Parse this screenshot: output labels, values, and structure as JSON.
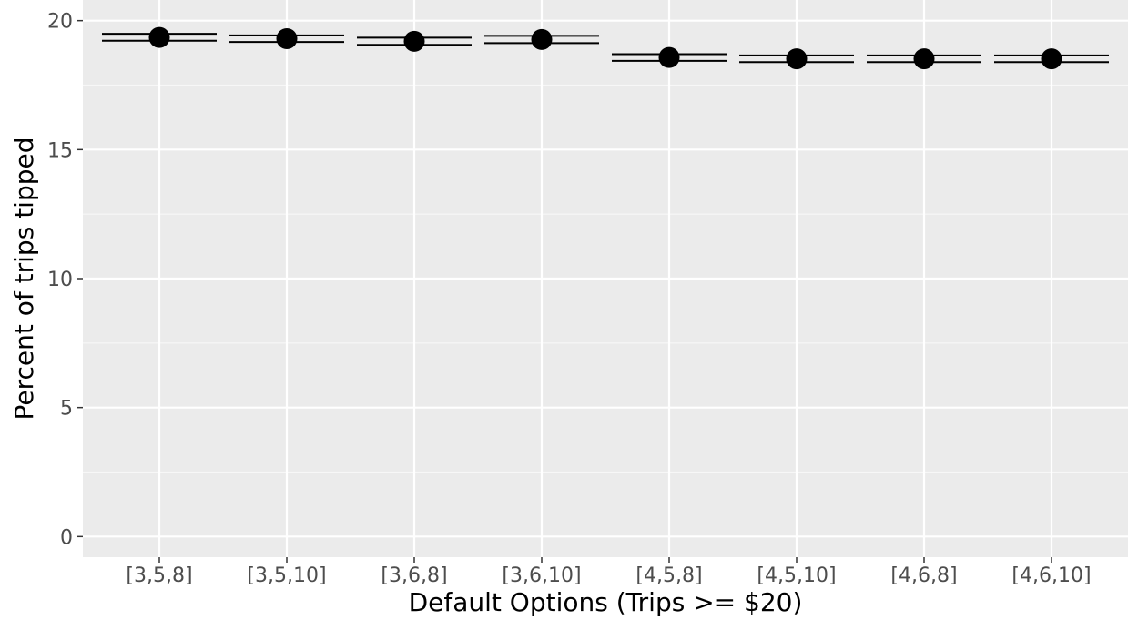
{
  "chart_data": {
    "type": "scatter",
    "title": "",
    "xlabel": "Default Options (Trips >= $20)",
    "ylabel": "Percent of trips tipped",
    "categories": [
      "[3,5,8]",
      "[3,5,10]",
      "[3,6,8]",
      "[3,6,10]",
      "[4,5,8]",
      "[4,5,10]",
      "[4,6,8]",
      "[4,6,10]"
    ],
    "values": [
      19.35,
      19.3,
      19.2,
      19.27,
      18.57,
      18.52,
      18.52,
      18.52
    ],
    "ci_low": [
      19.22,
      19.17,
      19.06,
      19.13,
      18.44,
      18.39,
      18.39,
      18.39
    ],
    "ci_high": [
      19.49,
      19.43,
      19.34,
      19.41,
      18.7,
      18.65,
      18.65,
      18.65
    ],
    "ylim": [
      -0.8,
      20.8
    ],
    "yticks": [
      0,
      5,
      10,
      15,
      20
    ],
    "ytick_labels": [
      "0",
      "5",
      "10",
      "15",
      "20"
    ],
    "grid": true,
    "colors": {
      "panel": "#ebebeb",
      "grid_major": "#ffffff",
      "grid_minor": "#f7f7f7",
      "point": "#000000",
      "tick_text": "#4d4d4d",
      "tick_mark": "#333333"
    }
  }
}
